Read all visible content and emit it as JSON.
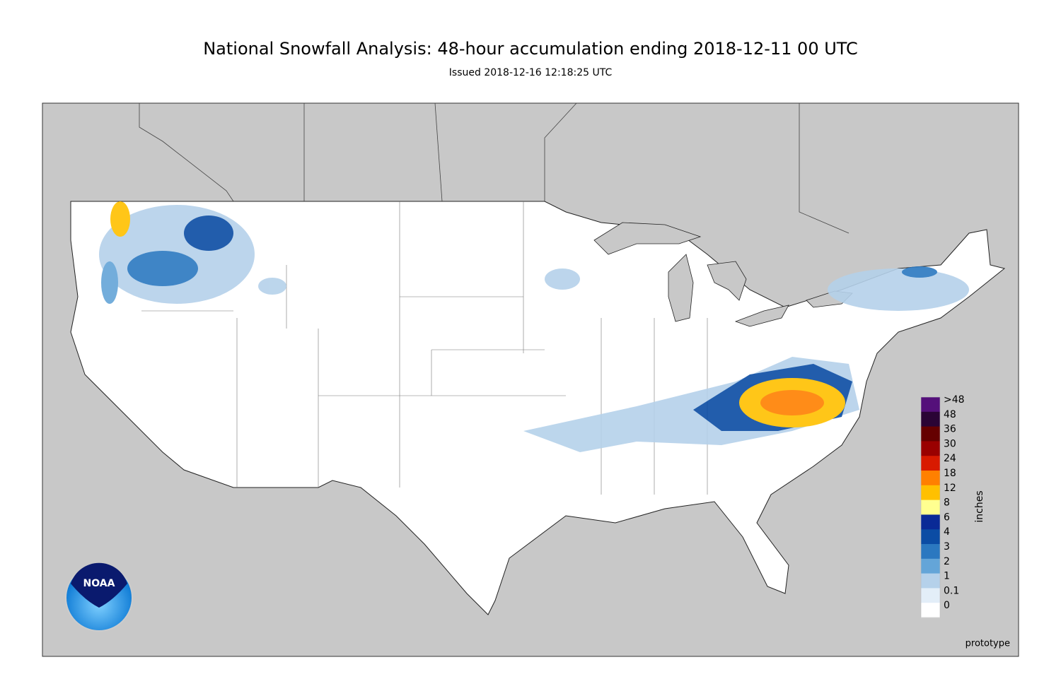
{
  "header": {
    "title": "National Snowfall Analysis: 48-hour accumulation ending 2018-12-11 00 UTC",
    "subtitle": "Issued 2018-12-16 12:18:25 UTC"
  },
  "legend": {
    "unit": "inches",
    "entries": [
      {
        "label": ">48",
        "color": "#54107a"
      },
      {
        "label": "48",
        "color": "#2a0435"
      },
      {
        "label": "36",
        "color": "#650000"
      },
      {
        "label": "30",
        "color": "#9a0000"
      },
      {
        "label": "24",
        "color": "#d81a00"
      },
      {
        "label": "18",
        "color": "#ff8000"
      },
      {
        "label": "12",
        "color": "#ffc000"
      },
      {
        "label": "8",
        "color": "#ffff90"
      },
      {
        "label": "6",
        "color": "#0a2a96"
      },
      {
        "label": "4",
        "color": "#0b4ca4"
      },
      {
        "label": "3",
        "color": "#2b78c0"
      },
      {
        "label": "2",
        "color": "#64a5d8"
      },
      {
        "label": "1",
        "color": "#b5d1ea"
      },
      {
        "label": "0.1",
        "color": "#e3eef8"
      },
      {
        "label": "0",
        "color": "#ffffff"
      }
    ]
  },
  "footer": {
    "note": "prototype"
  },
  "logo": {
    "text": "NOAA"
  }
}
